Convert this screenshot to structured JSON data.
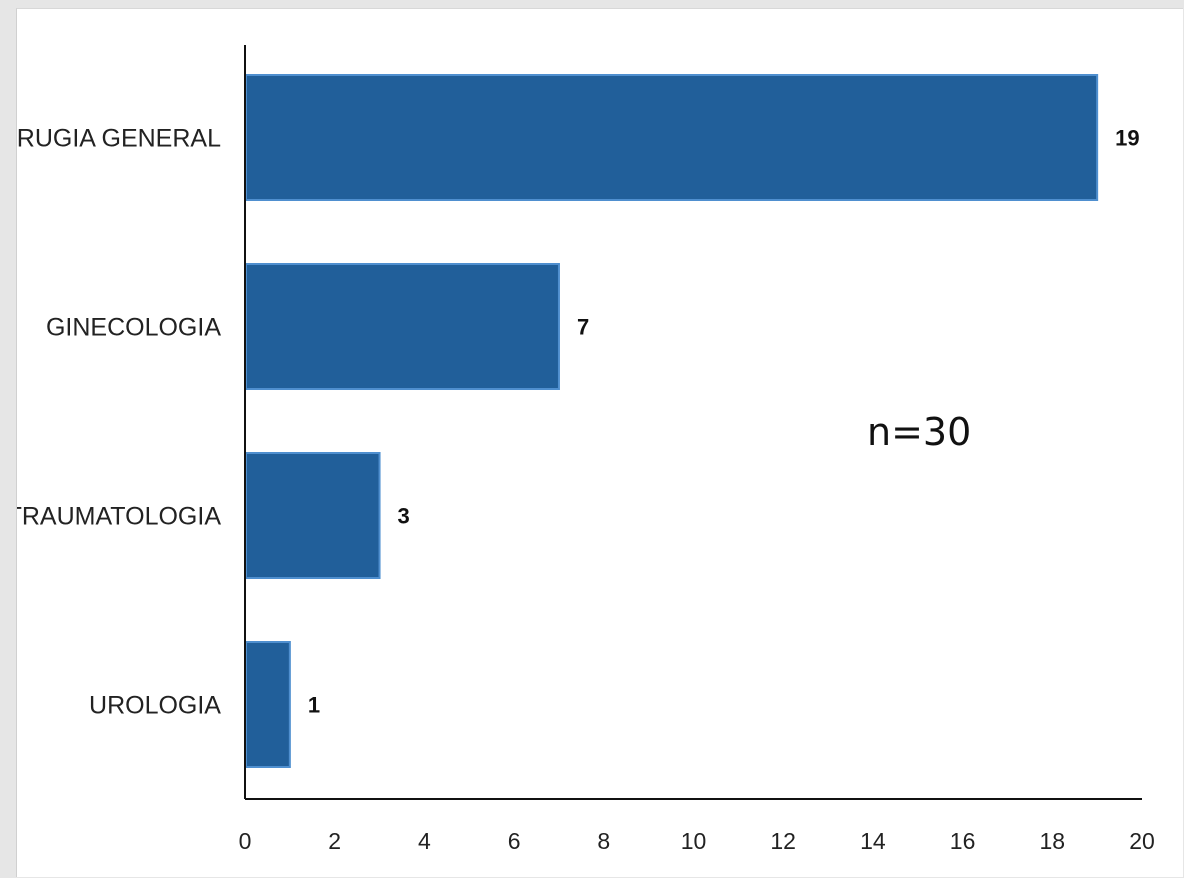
{
  "chart_data": {
    "type": "bar",
    "orientation": "horizontal",
    "categories": [
      "CIRUGIA GENERAL",
      "GINECOLOGIA",
      "TRAUMATOLOGIA",
      "UROLOGIA"
    ],
    "values": [
      19,
      7,
      3,
      1
    ],
    "data_labels": [
      "19",
      "7",
      "3",
      "1"
    ],
    "title": "",
    "xlabel": "",
    "ylabel": "",
    "xlim": [
      0,
      20
    ],
    "x_ticks": [
      "0",
      "2",
      "4",
      "6",
      "8",
      "10",
      "12",
      "14",
      "16",
      "18",
      "20"
    ],
    "grid": false,
    "legend": "none",
    "annotation": "n=30",
    "bar_color": "#215f9a",
    "bar_edge_color": "#4f8fcf"
  }
}
